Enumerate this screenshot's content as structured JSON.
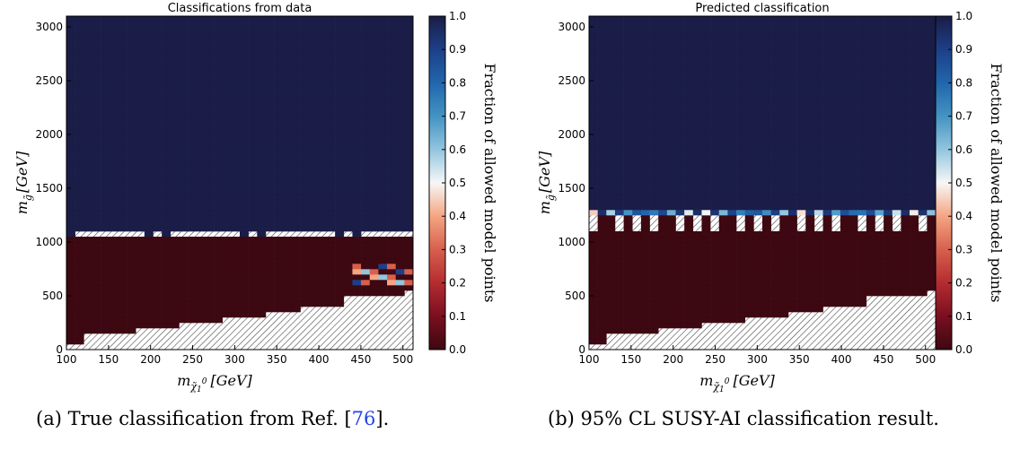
{
  "chart_data": [
    {
      "type": "heatmap",
      "title": "Classifications from data",
      "xlabel": "m_χ̃₁⁰ [GeV]",
      "ylabel": "m_g̃ [GeV]",
      "xlim": [
        100,
        512
      ],
      "ylim": [
        0,
        3100
      ],
      "xticks": [
        "100",
        "150",
        "200",
        "250",
        "300",
        "350",
        "400",
        "450",
        "500"
      ],
      "yticks": [
        "0",
        "500",
        "1000",
        "1500",
        "2000",
        "2500",
        "3000"
      ],
      "colorbar": {
        "label": "Fraction of allowed model points",
        "ticks": [
          "0.0",
          "0.1",
          "0.2",
          "0.3",
          "0.4",
          "0.5",
          "0.6",
          "0.7",
          "0.8",
          "0.9",
          "1.0"
        ],
        "range": [
          0,
          1
        ]
      },
      "regions": {
        "allowed_fraction_1_above_gluino_mass": 1100,
        "excluded_fraction_0_below_gluino_mass": 1050,
        "no_data_boundary_lower": [
          [
            100,
            50
          ],
          [
            120,
            130
          ],
          [
            180,
            180
          ],
          [
            230,
            240
          ],
          [
            290,
            300
          ],
          [
            340,
            350
          ],
          [
            380,
            380
          ],
          [
            430,
            460
          ],
          [
            500,
            510
          ]
        ]
      },
      "caption": {
        "text": "(a) True classification from Ref. [",
        "ref": "76",
        "tail": "]."
      }
    },
    {
      "type": "heatmap",
      "title": "Predicted classification",
      "xlabel": "m_χ̃₁⁰ [GeV]",
      "ylabel": "m_g̃ [GeV]",
      "xlim": [
        100,
        512
      ],
      "ylim": [
        0,
        3100
      ],
      "xticks": [
        "100",
        "150",
        "200",
        "250",
        "300",
        "350",
        "400",
        "450",
        "500"
      ],
      "yticks": [
        "0",
        "500",
        "1000",
        "1500",
        "2000",
        "2500",
        "3000"
      ],
      "colorbar": {
        "label": "Fraction of allowed model points",
        "ticks": [
          "0.0",
          "0.1",
          "0.2",
          "0.3",
          "0.4",
          "0.5",
          "0.6",
          "0.7",
          "0.8",
          "0.9",
          "1.0"
        ],
        "range": [
          0,
          1
        ]
      },
      "regions": {
        "allowed_fraction_1_above_gluino_mass": 1300,
        "mixed_band_gluino_mass": [
          1250,
          1300
        ],
        "excluded_fraction_0_below_gluino_mass": 1250
      },
      "caption": {
        "text": "(b) 95% CL SUSY-AI classification result.",
        "ref": "",
        "tail": ""
      }
    }
  ],
  "axis_text": {
    "x_var": "m",
    "x_sub": "χ̃",
    "x_sub2": "1",
    "x_sup": "0",
    "x_unit": "[GeV]",
    "y_var": "m",
    "y_sub": "g̃",
    "y_unit": "[GeV]"
  },
  "colors": {
    "allowed": "#1a1d47",
    "excluded": "#3d0811",
    "hatch": "#444444"
  }
}
